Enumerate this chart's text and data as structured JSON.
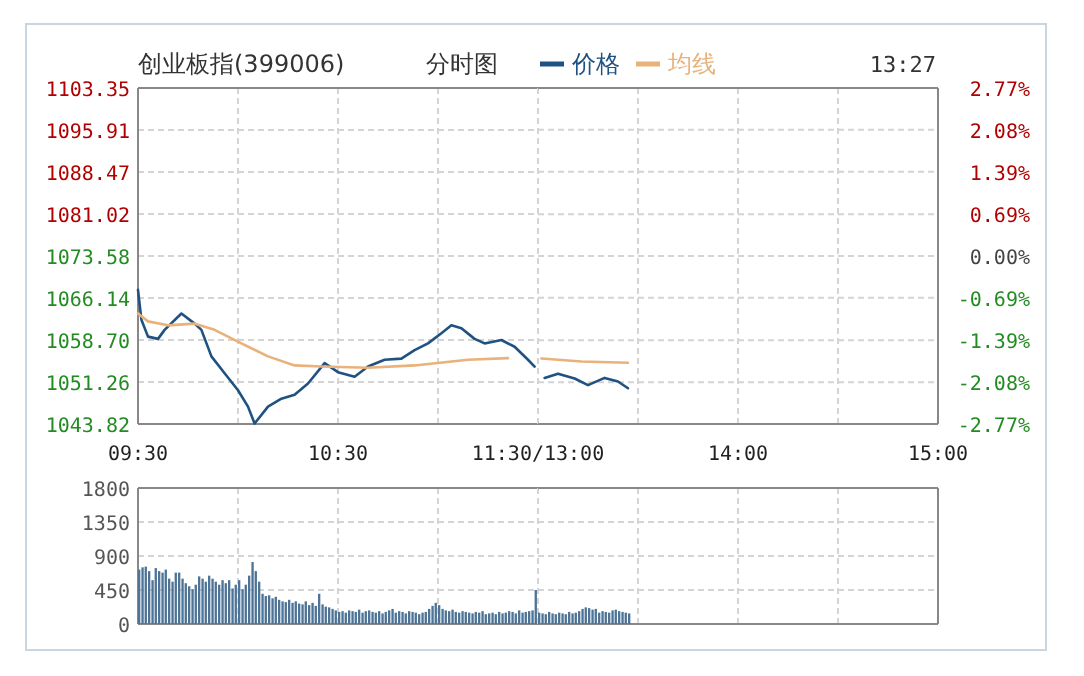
{
  "chart_data": [
    {
      "type": "line",
      "title": "创业板指(399006)",
      "subtitle": "分时图",
      "annotations": [
        "13:27"
      ],
      "xlim": [
        9.5,
        11.5
      ],
      "xticks": [
        {
          "value": 9.5,
          "label": "09:30"
        },
        {
          "value": 10,
          "label": null
        },
        {
          "value": 10.5,
          "label": "10:30"
        },
        {
          "value": 11,
          "label": null
        },
        {
          "value": 11.5,
          "label": "11:30/13:00"
        }
      ],
      "ylim": [
        1043.82,
        1103.35
      ],
      "yticks": [
        1043.82,
        1051.26,
        {
          "value": 1058.7,
          "label": "1058.70"
        },
        1066.14,
        1073.58,
        1081.02,
        1088.47,
        1095.91,
        1103.35
      ],
      "grid": true,
      "legend": "top",
      "series": [
        {
          "name": "价格",
          "color": "#1f5282",
          "x": [
            9.5,
            9.517,
            9.55,
            9.6,
            9.633,
            9.717,
            9.783,
            9.817,
            9.867,
            9.933,
            10.0,
            10.05,
            10.083,
            10.15,
            10.217,
            10.283,
            10.35,
            10.433,
            10.5,
            10.583,
            10.65,
            10.733,
            10.817,
            10.883,
            10.95,
            11.017,
            11.067,
            11.117,
            11.183,
            11.233,
            11.317,
            11.383,
            11.45,
            11.483
          ],
          "values": [
            1067.6,
            1062.3,
            1059.3,
            1058.9,
            1060.5,
            1063.4,
            1061.6,
            1060.5,
            1055.8,
            1052.8,
            1049.8,
            1046.9,
            1043.9,
            1046.9,
            1048.3,
            1049.0,
            1051.0,
            1054.6,
            1053.0,
            1052.2,
            1054.0,
            1055.2,
            1055.4,
            1056.9,
            1058.1,
            1059.9,
            1061.3,
            1060.8,
            1058.9,
            1058.1,
            1058.7,
            1057.5,
            1055.2,
            1054.0
          ]
        },
        {
          "name": "均线",
          "color": "#e8b27a",
          "x": [
            9.5,
            9.55,
            9.65,
            9.783,
            9.883,
            10.017,
            10.15,
            10.283,
            10.417,
            10.65,
            10.883,
            11.15,
            11.35
          ],
          "values": [
            1063.4,
            1062.0,
            1061.3,
            1061.6,
            1060.5,
            1058.1,
            1055.8,
            1054.2,
            1054.0,
            1053.8,
            1054.2,
            1055.2,
            1055.5
          ]
        }
      ]
    },
    {
      "type": "line",
      "grid": true,
      "xlim": [
        13,
        15
      ],
      "xticks": [
        {
          "value": 13,
          "label": null
        },
        {
          "value": 13.5,
          "label": null
        },
        {
          "value": 14,
          "label": "14:00"
        },
        {
          "value": 14.5,
          "label": null
        },
        {
          "value": 15,
          "label": "15:00"
        }
      ],
      "y2lim": [
        -2.77,
        2.77
      ],
      "y2ticks": [
        {
          "value": -2.77,
          "label": "-2.77%"
        },
        {
          "value": -2.08,
          "label": "-2.08%"
        },
        {
          "value": -1.39,
          "label": "-1.39%"
        },
        {
          "value": -0.69,
          "label": "-0.69%"
        },
        {
          "value": 0,
          "label": "0.00%"
        },
        {
          "value": 0.69,
          "label": "0.69%"
        },
        {
          "value": 1.39,
          "label": "1.39%"
        },
        {
          "value": 2.08,
          "label": "2.08%"
        },
        {
          "value": 2.77,
          "label": "2.77%"
        }
      ],
      "series": [
        {
          "color": "#1f5282",
          "axis": "y2",
          "x": [
            13.033,
            13.1,
            13.183,
            13.25,
            13.333,
            13.4,
            13.45
          ],
          "values": [
            -2.01,
            -1.94,
            -2.02,
            -2.13,
            -2.01,
            -2.07,
            -2.18
          ]
        },
        {
          "color": "#e8b27a",
          "axis": "y2",
          "x": [
            13.017,
            13.217,
            13.45
          ],
          "values": [
            -1.69,
            -1.74,
            -1.76
          ]
        }
      ]
    },
    {
      "type": "bar",
      "tick_labels": "y",
      "grid": true,
      "xlim": [
        9.5,
        11.5
      ],
      "xticks": [
        {
          "value": 9.5,
          "label": null
        },
        {
          "value": 10,
          "label": null
        },
        {
          "value": 10.5,
          "label": null
        },
        {
          "value": 11,
          "label": null
        },
        {
          "value": 11.5,
          "label": null
        }
      ],
      "ylim": [
        0,
        1800
      ],
      "yticks": [
        0,
        450,
        900,
        1350,
        1800
      ],
      "series": [
        {
          "color": "#4d7496",
          "x": [
            9.5,
            9.517,
            9.533,
            9.55,
            9.567,
            9.583,
            9.6,
            9.617,
            9.633,
            9.65,
            9.667,
            9.683,
            9.7,
            9.717,
            9.733,
            9.75,
            9.767,
            9.783,
            9.8,
            9.817,
            9.833,
            9.85,
            9.867,
            9.883,
            9.9,
            9.917,
            9.933,
            9.95,
            9.967,
            9.983,
            10.0,
            10.017,
            10.033,
            10.05,
            10.067,
            10.083,
            10.1,
            10.117,
            10.133,
            10.15,
            10.167,
            10.183,
            10.2,
            10.217,
            10.233,
            10.25,
            10.267,
            10.283,
            10.3,
            10.317,
            10.333,
            10.35,
            10.367,
            10.383,
            10.4,
            10.417,
            10.433,
            10.45,
            10.467,
            10.483,
            10.5,
            10.517,
            10.533,
            10.55,
            10.567,
            10.583,
            10.6,
            10.617,
            10.633,
            10.65,
            10.667,
            10.683,
            10.7,
            10.717,
            10.733,
            10.75,
            10.767,
            10.783,
            10.8,
            10.817,
            10.833,
            10.85,
            10.867,
            10.883,
            10.9,
            10.917,
            10.933,
            10.95,
            10.967,
            10.983,
            11.0,
            11.017,
            11.033,
            11.05,
            11.067,
            11.083,
            11.1,
            11.117,
            11.133,
            11.15,
            11.167,
            11.183,
            11.2,
            11.217,
            11.233,
            11.25,
            11.267,
            11.283,
            11.3,
            11.317,
            11.333,
            11.35,
            11.367,
            11.383,
            11.4,
            11.417,
            11.433,
            11.45,
            11.467,
            11.483
          ],
          "values": [
            720,
            750,
            760,
            700,
            580,
            740,
            700,
            680,
            720,
            600,
            560,
            680,
            680,
            600,
            540,
            500,
            460,
            520,
            630,
            600,
            560,
            640,
            600,
            560,
            520,
            580,
            540,
            580,
            470,
            520,
            580,
            460,
            520,
            640,
            820,
            700,
            560,
            400,
            370,
            380,
            340,
            360,
            320,
            300,
            290,
            320,
            280,
            300,
            270,
            260,
            300,
            250,
            280,
            240,
            400,
            260,
            230,
            220,
            200,
            180,
            160,
            170,
            150,
            180,
            170,
            160,
            190,
            150,
            170,
            180,
            160,
            150,
            170,
            140,
            160,
            180,
            200,
            150,
            170,
            160,
            140,
            170,
            160,
            150,
            130,
            150,
            160,
            200,
            240,
            280,
            250,
            200,
            180,
            170,
            190,
            160,
            150,
            170,
            160,
            150,
            140,
            160,
            150,
            170,
            130,
            140,
            150,
            130,
            160,
            140,
            150,
            170,
            160,
            140,
            180,
            150,
            160,
            170,
            180,
            450
          ]
        }
      ]
    },
    {
      "type": "bar",
      "tick_labels": false,
      "grid": true,
      "xlim": [
        13,
        15
      ],
      "xticks": [
        {
          "value": 13,
          "label": null
        },
        {
          "value": 13.5,
          "label": null
        },
        {
          "value": 14,
          "label": null
        },
        {
          "value": 14.5,
          "label": null
        },
        {
          "value": 15,
          "label": null
        }
      ],
      "ylim": [
        0,
        1800
      ],
      "yticks": [
        0,
        450,
        900,
        1350,
        1800
      ],
      "series": [
        {
          "color": "#4d7496",
          "x": [
            13.0,
            13.017,
            13.033,
            13.05,
            13.067,
            13.083,
            13.1,
            13.117,
            13.133,
            13.15,
            13.167,
            13.183,
            13.2,
            13.217,
            13.233,
            13.25,
            13.267,
            13.283,
            13.3,
            13.317,
            13.333,
            13.35,
            13.367,
            13.383,
            13.4,
            13.417,
            13.433,
            13.45
          ],
          "values": [
            150,
            140,
            130,
            160,
            140,
            130,
            150,
            140,
            130,
            160,
            140,
            150,
            170,
            200,
            220,
            210,
            190,
            200,
            150,
            170,
            160,
            150,
            180,
            190,
            170,
            160,
            150,
            140
          ]
        }
      ]
    }
  ]
}
